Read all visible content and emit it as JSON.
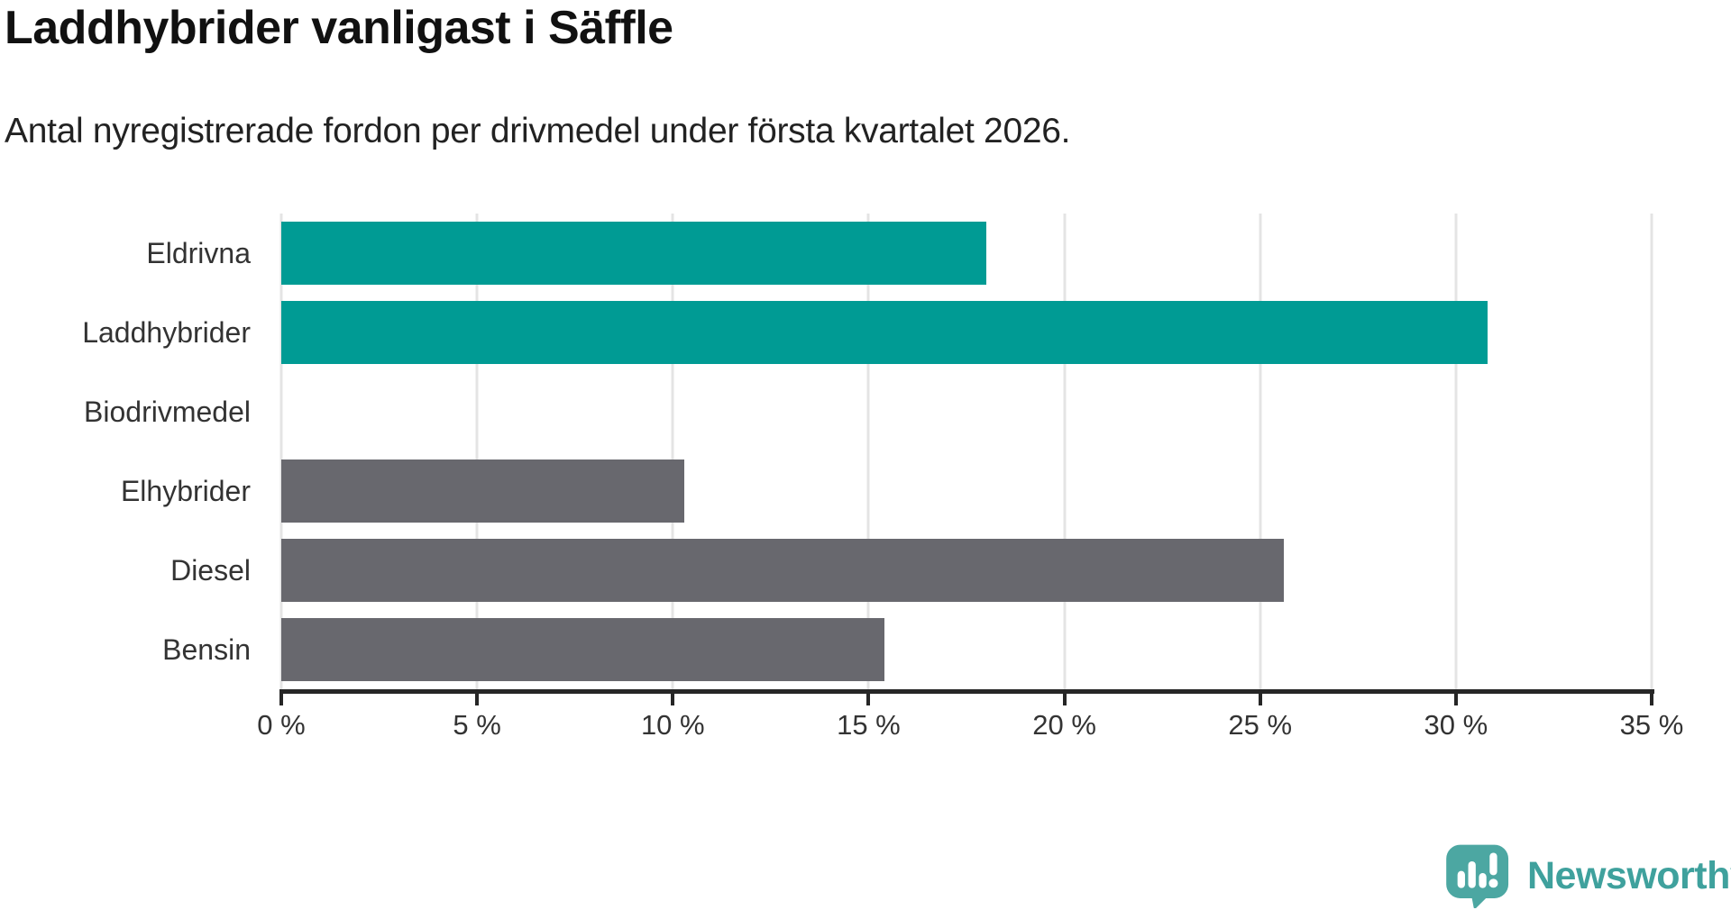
{
  "chart_data": {
    "type": "bar",
    "orientation": "horizontal",
    "title": "Laddhybrider vanligast i Säffle",
    "subtitle": "Antal nyregistrerade fordon per drivmedel under första kvartalet 2026.",
    "categories": [
      "Eldrivna",
      "Laddhybrider",
      "Biodrivmedel",
      "Elhybrider",
      "Diesel",
      "Bensin"
    ],
    "values": [
      18.0,
      30.8,
      0,
      10.3,
      25.6,
      15.4
    ],
    "unit": "%",
    "xlabel": "",
    "ylabel": "",
    "xlim": [
      0,
      35
    ],
    "x_ticks": [
      0,
      5,
      10,
      15,
      20,
      25,
      30,
      35
    ],
    "x_tick_labels": [
      "0 %",
      "5 %",
      "10 %",
      "15 %",
      "20 %",
      "25 %",
      "30 %",
      "35 %"
    ],
    "grid": "vertical-gridlines-on",
    "legend": "none",
    "bar_color_roles": [
      "highlight",
      "highlight",
      "none",
      "muted",
      "muted",
      "muted"
    ],
    "colors": {
      "highlight": "#009B94",
      "muted": "#68686E",
      "gridline": "#e4e4e4",
      "axis": "#262626",
      "text": "#333333"
    }
  },
  "branding": {
    "logo_text": "Newsworthy",
    "logo_text_color": "#3FA19D",
    "logo_icon_color": "#4CA7A2",
    "logo_icon_name": "newsworthy-speech-bubble-bar-chart-icon"
  }
}
